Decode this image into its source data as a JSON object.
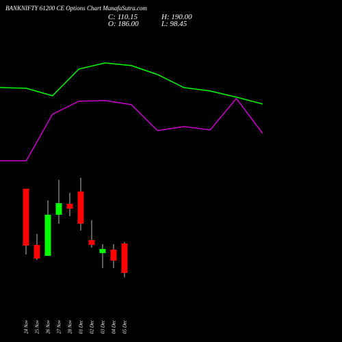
{
  "chart_data": {
    "type": "candlestick",
    "title": "BANKNIFTY 61200  CE Options Chart MunafaSutra.com",
    "ohlc_labels": {
      "close": "C: 110.15",
      "high": "H: 190.00",
      "open": "O: 186.00",
      "low": "L: 98.45"
    },
    "categories": [
      "24 Nov",
      "25 Nov",
      "26 Nov",
      "27 Nov",
      "28 Nov",
      "01 Dec",
      "02 Dec",
      "03 Dec",
      "04 Dec",
      "05 Dec"
    ],
    "open": [
      327.1,
      182.5,
      154.2,
      260.1,
      288.3,
      320.1,
      194.8,
      161.3,
      170.1,
      186
    ],
    "high": [
      327.1,
      210.7,
      297.1,
      350.1,
      316.5,
      355.3,
      246.0,
      184.2,
      184.2,
      190
    ],
    "low": [
      157.8,
      143.7,
      154.2,
      237.2,
      256.6,
      219.5,
      175.4,
      122.5,
      122.5,
      98.45
    ],
    "close": [
      180.7,
      147.2,
      260.1,
      290.1,
      276.0,
      237.2,
      182.5,
      171.9,
      141.9,
      110.15
    ],
    "up_color": "#00ff00",
    "down_color": "#ff0000",
    "ylim": [
      -68,
      814
    ],
    "lines": [
      {
        "color": "#00ff00",
        "x": [
          0,
          1,
          2,
          3,
          4,
          5,
          6,
          7,
          8,
          9,
          10
        ],
        "values": [
          588.2,
          586.4,
          567.0,
          635.8,
          651.7,
          644.9,
          621.7,
          588.2,
          579.4,
          563.5,
          545.9
        ]
      },
      {
        "color": "#cc00cc",
        "x": [
          0,
          1,
          2,
          3,
          4,
          5,
          6,
          7,
          8,
          9,
          10
        ],
        "values": [
          399.4,
          399.4,
          519.4,
          552.9,
          554.7,
          544.1,
          477.1,
          487.6,
          478.8,
          560.0,
          470.0
        ]
      }
    ],
    "line_xlim": [
      0,
      13.02
    ]
  }
}
